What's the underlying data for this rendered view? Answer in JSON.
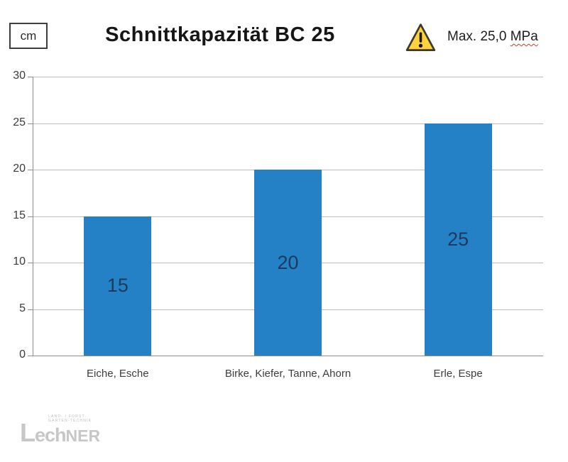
{
  "header": {
    "unit_label": "cm",
    "title": "Schnittkapazität BC 25",
    "warning": {
      "icon": "warning-triangle-icon",
      "text_prefix": "Max. 25,0 ",
      "text_underlined": "MPa"
    }
  },
  "chart_data": {
    "type": "bar",
    "title": "Schnittkapazität BC 25",
    "unit_label": "cm",
    "categories": [
      "Eiche, Esche",
      "Birke, Kiefer, Tanne, Ahorn",
      "Erle, Espe"
    ],
    "values": [
      15,
      20,
      25
    ],
    "bar_labels": [
      "15",
      "20",
      "25"
    ],
    "ylim": [
      0,
      30
    ],
    "yticks": [
      0,
      5,
      10,
      15,
      20,
      25,
      30
    ],
    "grid": true,
    "legend": "none",
    "annotation": "Max. 25,0 MPa",
    "colors": {
      "bar_fill": "#2581c5",
      "bar_value_label": "#1b3a5e",
      "gridline": "#bcbcbc",
      "axis": "#8c8c8c",
      "warning_yellow": "#ffd33c",
      "warning_outline": "#3e3a2a",
      "squiggle_red": "#c23a2e"
    }
  },
  "footer": {
    "logo_main_part1": "L",
    "logo_main_part2": "ech",
    "logo_main_part3": "NER",
    "logo_tagline_line1": "LAND- / FORST-",
    "logo_tagline_line2": "GARTEN-TECHNIK"
  }
}
